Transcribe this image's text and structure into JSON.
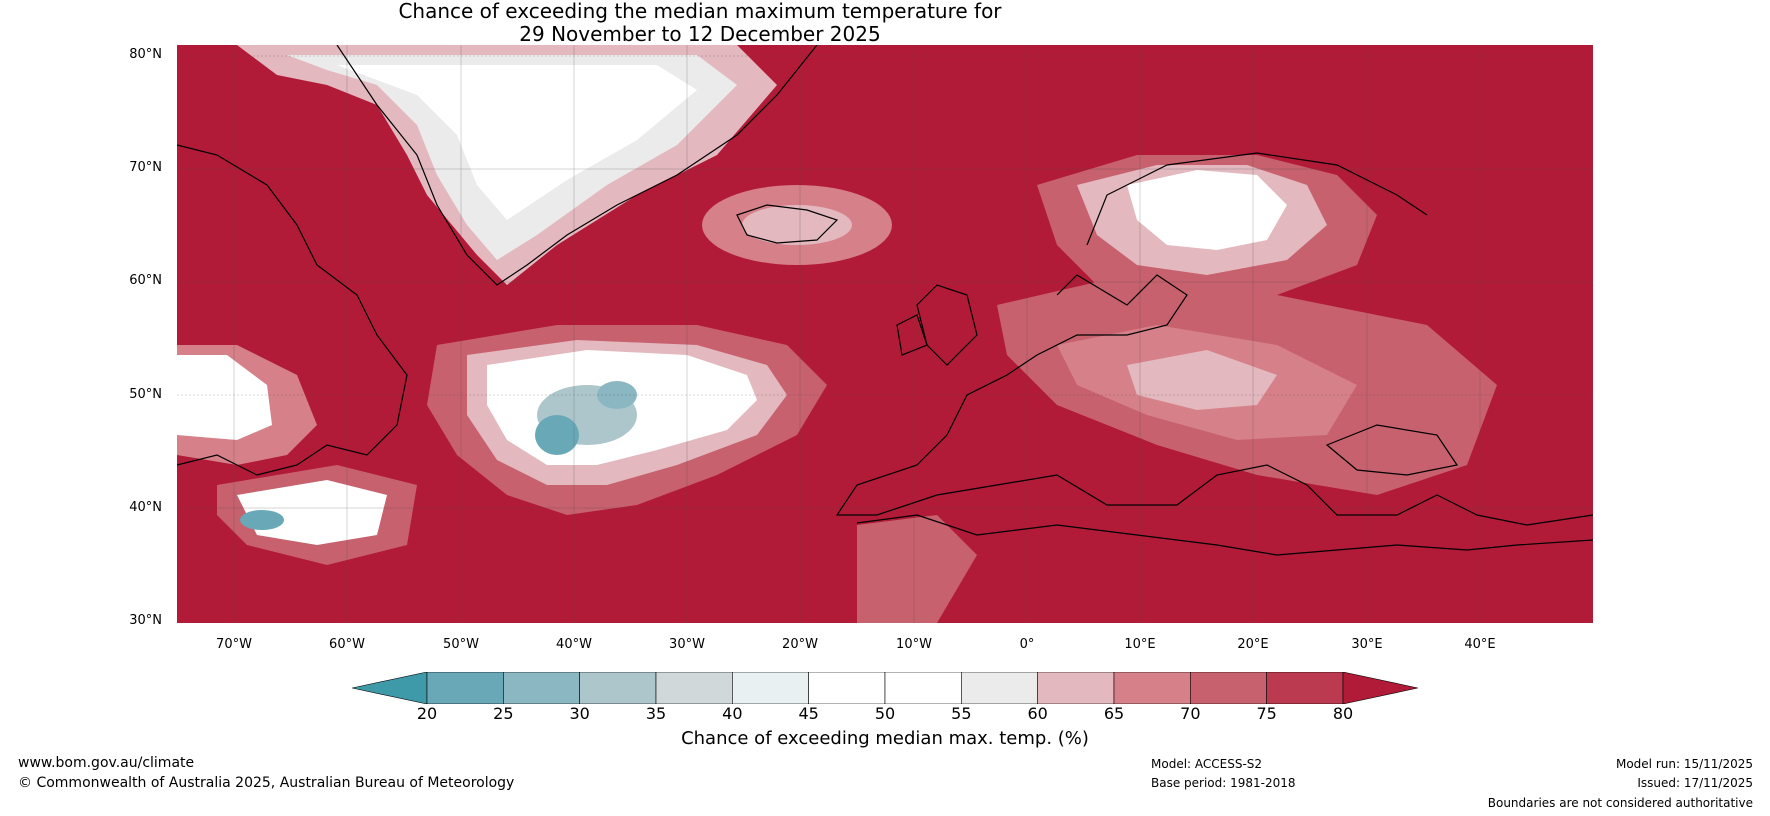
{
  "title": {
    "line1": "Chance of exceeding the median maximum temperature for",
    "line2": "29 November to 12 December 2025"
  },
  "map": {
    "latitude_labels": [
      "80°N",
      "70°N",
      "60°N",
      "50°N",
      "40°N",
      "30°N"
    ],
    "longitude_labels": [
      "70°W",
      "60°W",
      "50°W",
      "40°W",
      "30°W",
      "20°W",
      "10°W",
      "0°",
      "10°E",
      "20°E",
      "30°E",
      "40°E"
    ],
    "background_color": "#b21b37"
  },
  "colorbar": {
    "label": "Chance of exceeding median max. temp. (%)",
    "ticks": [
      "20",
      "25",
      "30",
      "35",
      "40",
      "45",
      "50",
      "55",
      "60",
      "65",
      "70",
      "75",
      "80"
    ],
    "colors": [
      "#3e9aa8",
      "#69a9b7",
      "#8bb7c2",
      "#adc6cc",
      "#d1d8da",
      "#e9f0f2",
      "#ffffff",
      "#ffffff",
      "#ecebec",
      "#e3b8bf",
      "#d68089",
      "#c7616e",
      "#bb3a4f",
      "#b21b37"
    ]
  },
  "footer": {
    "website": "www.bom.gov.au/climate",
    "copyright": "© Commonwealth of Australia 2025, Australian Bureau of Meteorology",
    "model": "Model: ACCESS-S2",
    "base_period": "Base period: 1981-2018",
    "model_run": "Model run: 15/11/2025",
    "issued": "Issued: 17/11/2025",
    "disclaimer": "Boundaries are not considered authoritative"
  }
}
